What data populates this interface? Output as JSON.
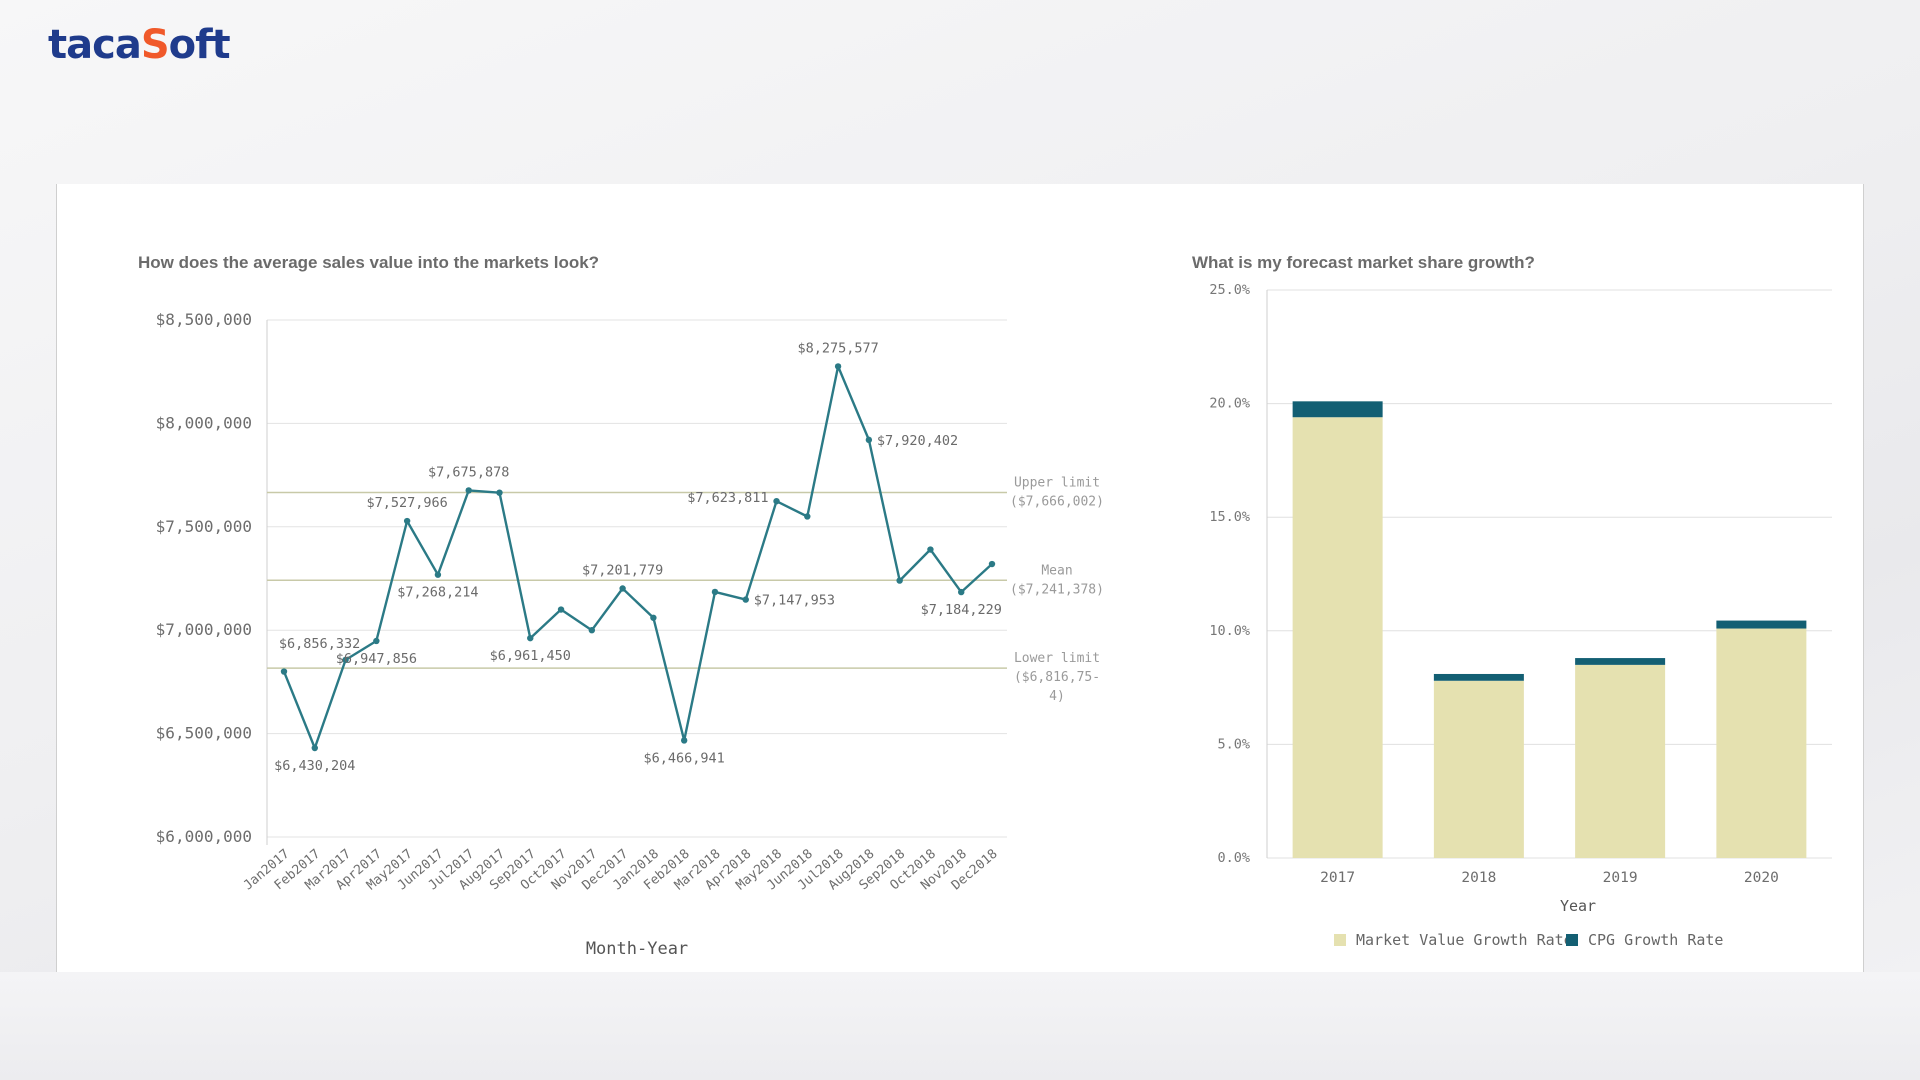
{
  "brand": {
    "prefix": "taca",
    "gear_glyph": "S",
    "suffix": "oft"
  },
  "chart_data": [
    {
      "type": "line",
      "title": "How does the average sales value into the markets look?",
      "xlabel": "Month-Year",
      "ylabel": "",
      "ylim": [
        6000000,
        8500000
      ],
      "yticks": [
        {
          "value": 6000000,
          "label": "$6,000,000"
        },
        {
          "value": 6500000,
          "label": "$6,500,000"
        },
        {
          "value": 7000000,
          "label": "$7,000,000"
        },
        {
          "value": 7500000,
          "label": "$7,500,000"
        },
        {
          "value": 8000000,
          "label": "$8,000,000"
        },
        {
          "value": 8500000,
          "label": "$8,500,000"
        }
      ],
      "categories": [
        "Jan2017",
        "Feb2017",
        "Mar2017",
        "Apr2017",
        "May2017",
        "Jun2017",
        "Jul2017",
        "Aug2017",
        "Sep2017",
        "Oct2017",
        "Nov2017",
        "Dec2017",
        "Jan2018",
        "Feb2018",
        "Mar2018",
        "Apr2018",
        "May2018",
        "Jun2018",
        "Jul2018",
        "Aug2018",
        "Sep2018",
        "Oct2018",
        "Nov2018",
        "Dec2018"
      ],
      "values": [
        6800000,
        6430204,
        6856332,
        6947856,
        7527966,
        7268214,
        7675878,
        7665000,
        6961450,
        7100000,
        7000000,
        7201779,
        7060000,
        6466941,
        7185000,
        7147953,
        7623811,
        7550000,
        8275577,
        7920402,
        7240000,
        7390000,
        7184229,
        7320000
      ],
      "data_labels": [
        {
          "index": 1,
          "text": "$6,430,204",
          "pos": "below"
        },
        {
          "index": 2,
          "text": "$6,856,332",
          "pos": "above-left"
        },
        {
          "index": 3,
          "text": "$6,947,856",
          "pos": "below"
        },
        {
          "index": 4,
          "text": "$7,527,966",
          "pos": "above"
        },
        {
          "index": 5,
          "text": "$7,268,214",
          "pos": "below"
        },
        {
          "index": 6,
          "text": "$7,675,878",
          "pos": "above"
        },
        {
          "index": 8,
          "text": "$6,961,450",
          "pos": "below"
        },
        {
          "index": 11,
          "text": "$7,201,779",
          "pos": "above"
        },
        {
          "index": 13,
          "text": "$6,466,941",
          "pos": "below"
        },
        {
          "index": 15,
          "text": "$7,147,953",
          "pos": "right"
        },
        {
          "index": 16,
          "text": "$7,623,811",
          "pos": "left"
        },
        {
          "index": 18,
          "text": "$8,275,577",
          "pos": "above"
        },
        {
          "index": 19,
          "text": "$7,920,402",
          "pos": "right"
        },
        {
          "index": 22,
          "text": "$7,184,229",
          "pos": "below"
        }
      ],
      "reference_lines": [
        {
          "name": "Upper limit",
          "value": 7666002,
          "label_lines": [
            "Upper limit",
            "($7,666,002)"
          ]
        },
        {
          "name": "Mean",
          "value": 7241378,
          "label_lines": [
            "Mean",
            "($7,241,378)"
          ]
        },
        {
          "name": "Lower limit",
          "value": 6816754,
          "label_lines": [
            "Lower limit",
            "($6,816,75-",
            "4)"
          ]
        }
      ],
      "line_color": "#2b7a86",
      "refline_color": "#c8c9a8"
    },
    {
      "type": "bar",
      "stacked": true,
      "title": "What is my forecast market share growth?",
      "xlabel": "Year",
      "ylabel": "",
      "ylim": [
        0,
        25
      ],
      "yticks": [
        {
          "value": 0,
          "label": "0.0%"
        },
        {
          "value": 5,
          "label": "5.0%"
        },
        {
          "value": 10,
          "label": "10.0%"
        },
        {
          "value": 15,
          "label": "15.0%"
        },
        {
          "value": 20,
          "label": "20.0%"
        },
        {
          "value": 25,
          "label": "25.0%"
        }
      ],
      "categories": [
        "2017",
        "2018",
        "2019",
        "2020"
      ],
      "series": [
        {
          "name": "Market Value Growth Rate",
          "color": "#e5e1b0",
          "values": [
            19.4,
            7.8,
            8.5,
            10.1
          ]
        },
        {
          "name": "CPG Growth Rate",
          "color": "#135f73",
          "values": [
            0.7,
            0.3,
            0.3,
            0.35
          ]
        }
      ],
      "legend_position": "bottom"
    }
  ]
}
